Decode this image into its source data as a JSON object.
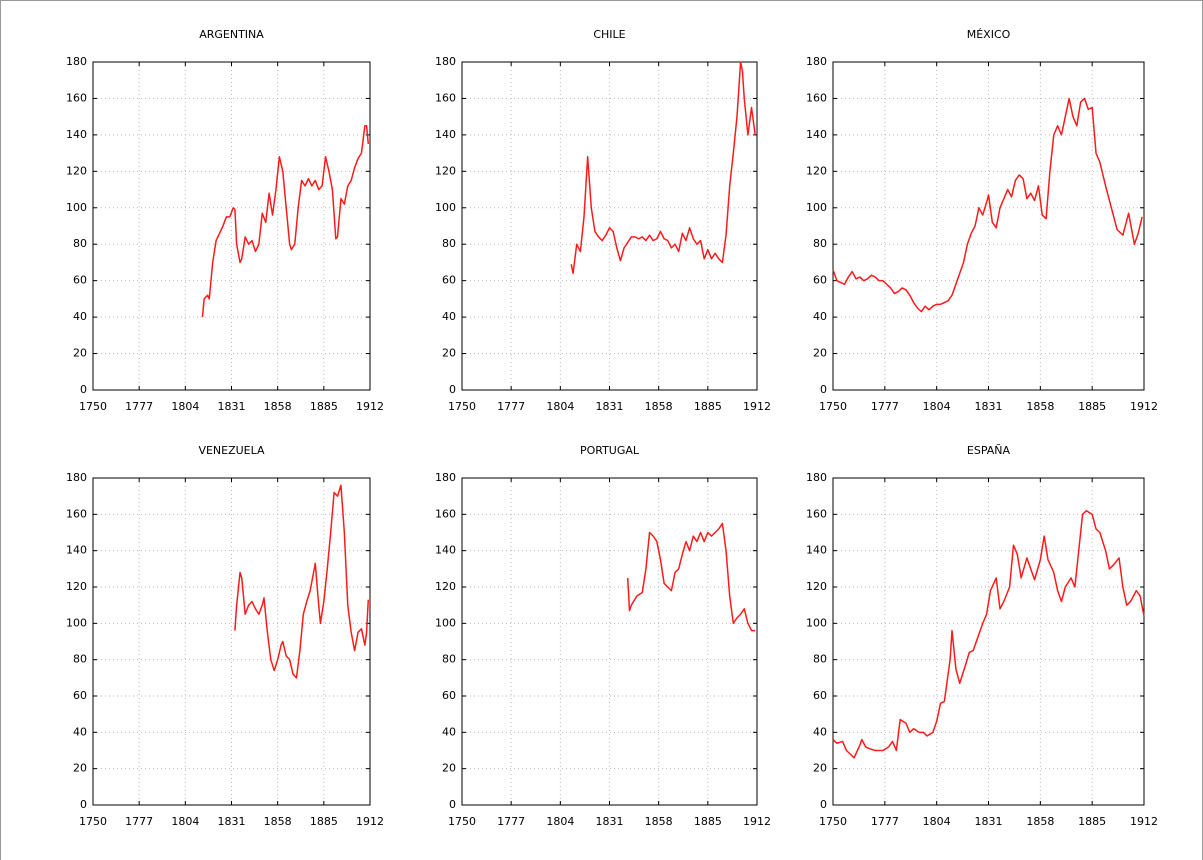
{
  "chart_data": [
    {
      "type": "line",
      "title": "ARGENTINA",
      "color": "#ff1a1a",
      "grid": true,
      "xlim": [
        1750,
        1912
      ],
      "xticks": [
        1750,
        1777,
        1804,
        1831,
        1858,
        1885,
        1912
      ],
      "ylim": [
        0,
        180
      ],
      "yticks": [
        0,
        20,
        40,
        60,
        80,
        100,
        120,
        140,
        160,
        180
      ],
      "x": [
        1814,
        1815,
        1817,
        1818,
        1820,
        1822,
        1824,
        1826,
        1828,
        1830,
        1832,
        1833,
        1834,
        1836,
        1837,
        1839,
        1841,
        1843,
        1845,
        1847,
        1849,
        1851,
        1853,
        1855,
        1857,
        1859,
        1861,
        1863,
        1865,
        1866,
        1868,
        1870,
        1872,
        1874,
        1876,
        1878,
        1880,
        1882,
        1884,
        1886,
        1888,
        1890,
        1892,
        1893,
        1895,
        1897,
        1899,
        1901,
        1903,
        1905,
        1907,
        1909,
        1910,
        1911
      ],
      "values": [
        40,
        50,
        52,
        50,
        70,
        82,
        86,
        90,
        95,
        95,
        100,
        99,
        80,
        70,
        72,
        84,
        80,
        82,
        76,
        80,
        97,
        92,
        108,
        96,
        110,
        128,
        120,
        100,
        80,
        77,
        80,
        100,
        115,
        112,
        116,
        112,
        115,
        110,
        112,
        128,
        120,
        110,
        83,
        84,
        105,
        102,
        112,
        115,
        122,
        127,
        130,
        145,
        145,
        135
      ]
    },
    {
      "type": "line",
      "title": "CHILE",
      "color": "#ff1a1a",
      "grid": true,
      "xlim": [
        1750,
        1912
      ],
      "xticks": [
        1750,
        1777,
        1804,
        1831,
        1858,
        1885,
        1912
      ],
      "ylim": [
        0,
        180
      ],
      "yticks": [
        0,
        20,
        40,
        60,
        80,
        100,
        120,
        140,
        160,
        180
      ],
      "x": [
        1810,
        1811,
        1813,
        1815,
        1817,
        1819,
        1821,
        1823,
        1825,
        1827,
        1829,
        1831,
        1833,
        1835,
        1837,
        1839,
        1841,
        1843,
        1845,
        1847,
        1849,
        1851,
        1853,
        1855,
        1857,
        1859,
        1861,
        1863,
        1865,
        1867,
        1869,
        1871,
        1873,
        1875,
        1877,
        1879,
        1881,
        1883,
        1885,
        1887,
        1889,
        1891,
        1893,
        1895,
        1897,
        1899,
        1901,
        1903,
        1904,
        1905,
        1907,
        1909,
        1911
      ],
      "values": [
        69,
        64,
        80,
        76,
        95,
        128,
        100,
        87,
        84,
        82,
        85,
        89,
        87,
        78,
        71,
        78,
        81,
        84,
        84,
        83,
        84,
        82,
        85,
        82,
        83,
        87,
        83,
        82,
        78,
        80,
        76,
        86,
        82,
        89,
        83,
        80,
        82,
        72,
        77,
        72,
        75,
        72,
        70,
        85,
        112,
        130,
        150,
        180,
        175,
        160,
        140,
        155,
        140
      ]
    },
    {
      "type": "line",
      "title": "MÉXICO",
      "color": "#ff1a1a",
      "grid": true,
      "xlim": [
        1750,
        1912
      ],
      "xticks": [
        1750,
        1777,
        1804,
        1831,
        1858,
        1885,
        1912
      ],
      "ylim": [
        0,
        180
      ],
      "yticks": [
        0,
        20,
        40,
        60,
        80,
        100,
        120,
        140,
        160,
        180
      ],
      "x": [
        1750,
        1752,
        1754,
        1756,
        1758,
        1760,
        1762,
        1764,
        1766,
        1768,
        1770,
        1772,
        1774,
        1776,
        1778,
        1780,
        1782,
        1784,
        1786,
        1788,
        1790,
        1792,
        1794,
        1796,
        1798,
        1800,
        1802,
        1804,
        1806,
        1808,
        1810,
        1812,
        1814,
        1816,
        1818,
        1820,
        1822,
        1824,
        1826,
        1828,
        1830,
        1831,
        1833,
        1835,
        1837,
        1839,
        1841,
        1843,
        1845,
        1847,
        1849,
        1851,
        1853,
        1855,
        1857,
        1859,
        1861,
        1863,
        1865,
        1867,
        1869,
        1871,
        1873,
        1875,
        1877,
        1879,
        1881,
        1883,
        1885,
        1887,
        1889,
        1892,
        1895,
        1898,
        1901,
        1904,
        1907,
        1909,
        1911
      ],
      "values": [
        66,
        60,
        59,
        58,
        62,
        65,
        61,
        62,
        60,
        61,
        63,
        62,
        60,
        60,
        58,
        56,
        53,
        54,
        56,
        55,
        52,
        48,
        45,
        43,
        46,
        44,
        46,
        47,
        47,
        48,
        49,
        52,
        58,
        64,
        70,
        80,
        86,
        90,
        100,
        96,
        103,
        107,
        92,
        89,
        100,
        105,
        110,
        106,
        115,
        118,
        116,
        105,
        108,
        104,
        112,
        96,
        94,
        120,
        140,
        145,
        140,
        150,
        160,
        150,
        145,
        158,
        160,
        154,
        155,
        130,
        125,
        112,
        100,
        88,
        85,
        97,
        80,
        86,
        95
      ]
    },
    {
      "type": "line",
      "title": "VENEZUELA",
      "color": "#ff1a1a",
      "grid": true,
      "xlim": [
        1750,
        1912
      ],
      "xticks": [
        1750,
        1777,
        1804,
        1831,
        1858,
        1885,
        1912
      ],
      "ylim": [
        0,
        180
      ],
      "yticks": [
        0,
        20,
        40,
        60,
        80,
        100,
        120,
        140,
        160,
        180
      ],
      "x": [
        1833,
        1834,
        1836,
        1837,
        1839,
        1841,
        1843,
        1845,
        1847,
        1849,
        1850,
        1852,
        1854,
        1856,
        1858,
        1860,
        1861,
        1863,
        1865,
        1867,
        1869,
        1871,
        1873,
        1875,
        1877,
        1879,
        1880,
        1882,
        1883,
        1885,
        1887,
        1889,
        1891,
        1893,
        1895,
        1897,
        1899,
        1901,
        1903,
        1905,
        1907,
        1909,
        1910,
        1911
      ],
      "values": [
        96,
        110,
        128,
        125,
        105,
        110,
        112,
        108,
        105,
        110,
        114,
        95,
        80,
        74,
        80,
        88,
        90,
        82,
        80,
        72,
        70,
        85,
        105,
        112,
        118,
        128,
        133,
        110,
        100,
        112,
        130,
        150,
        172,
        170,
        176,
        150,
        110,
        95,
        85,
        95,
        97,
        88,
        95,
        113
      ]
    },
    {
      "type": "line",
      "title": "PORTUGAL",
      "color": "#ff1a1a",
      "grid": true,
      "xlim": [
        1750,
        1912
      ],
      "xticks": [
        1750,
        1777,
        1804,
        1831,
        1858,
        1885,
        1912
      ],
      "ylim": [
        0,
        180
      ],
      "yticks": [
        0,
        20,
        40,
        60,
        80,
        100,
        120,
        140,
        160,
        180
      ],
      "x": [
        1841,
        1842,
        1843,
        1846,
        1849,
        1851,
        1853,
        1855,
        1857,
        1859,
        1861,
        1863,
        1865,
        1867,
        1869,
        1871,
        1873,
        1875,
        1877,
        1879,
        1881,
        1883,
        1885,
        1887,
        1889,
        1891,
        1893,
        1895,
        1897,
        1899,
        1901,
        1903,
        1905,
        1907,
        1909,
        1911
      ],
      "values": [
        125,
        107,
        110,
        115,
        117,
        130,
        150,
        148,
        145,
        135,
        122,
        120,
        118,
        128,
        130,
        138,
        145,
        140,
        148,
        145,
        150,
        145,
        150,
        148,
        150,
        152,
        155,
        140,
        115,
        100,
        103,
        105,
        108,
        100,
        96,
        96
      ]
    },
    {
      "type": "line",
      "title": "ESPAÑA",
      "color": "#ff1a1a",
      "grid": true,
      "xlim": [
        1750,
        1912
      ],
      "xticks": [
        1750,
        1777,
        1804,
        1831,
        1858,
        1885,
        1912
      ],
      "ylim": [
        0,
        180
      ],
      "yticks": [
        0,
        20,
        40,
        60,
        80,
        100,
        120,
        140,
        160,
        180
      ],
      "x": [
        1750,
        1752,
        1755,
        1757,
        1759,
        1761,
        1764,
        1765,
        1767,
        1769,
        1772,
        1774,
        1776,
        1779,
        1781,
        1783,
        1785,
        1788,
        1790,
        1792,
        1795,
        1797,
        1799,
        1802,
        1804,
        1806,
        1808,
        1811,
        1812,
        1814,
        1816,
        1819,
        1821,
        1823,
        1826,
        1828,
        1830,
        1832,
        1835,
        1837,
        1839,
        1842,
        1844,
        1846,
        1848,
        1851,
        1853,
        1855,
        1858,
        1860,
        1862,
        1865,
        1867,
        1869,
        1871,
        1874,
        1876,
        1878,
        1880,
        1882,
        1885,
        1887,
        1889,
        1892,
        1894,
        1896,
        1899,
        1901,
        1903,
        1905,
        1908,
        1910,
        1912
      ],
      "values": [
        36,
        34,
        35,
        30,
        28,
        26,
        33,
        36,
        32,
        31,
        30,
        30,
        30,
        32,
        35,
        30,
        47,
        45,
        40,
        42,
        40,
        40,
        38,
        40,
        46,
        56,
        57,
        80,
        96,
        75,
        67,
        77,
        84,
        85,
        94,
        100,
        105,
        118,
        125,
        108,
        112,
        120,
        143,
        138,
        125,
        136,
        130,
        124,
        135,
        148,
        135,
        128,
        118,
        112,
        120,
        125,
        120,
        140,
        160,
        162,
        160,
        152,
        150,
        140,
        130,
        132,
        136,
        120,
        110,
        112,
        118,
        115,
        104
      ]
    }
  ]
}
